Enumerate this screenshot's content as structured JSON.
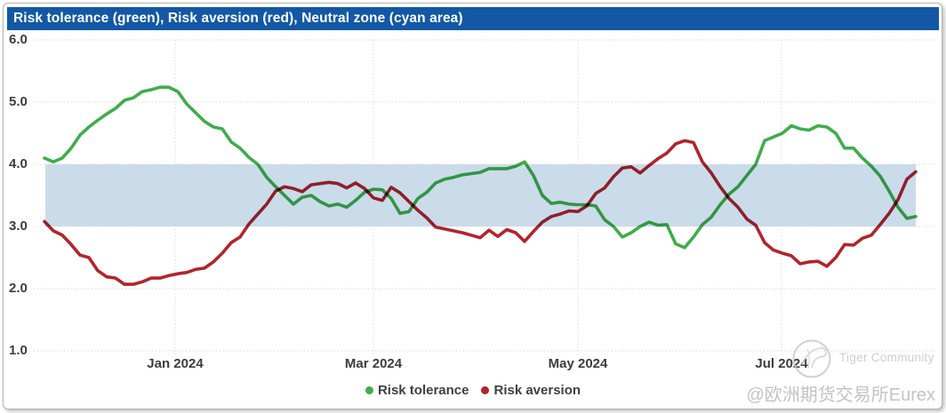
{
  "title_bar": {
    "text": "Risk tolerance (green), Risk aversion (red), Neutral zone (cyan area)"
  },
  "colors": {
    "title_bar_bg": "#1358A5",
    "title_text": "#FFFFFF",
    "risk_tolerance_green": "#3FAE49",
    "risk_aversion_red": "#B3242C",
    "neutral_band_cyan": "#CADBEA",
    "gridline": "#DCDCDC",
    "axis_label": "#3D3D3D",
    "watermark_gray": "#C8C8C8"
  },
  "chart_data": {
    "type": "line",
    "title": "Risk tolerance (green), Risk aversion (red), Neutral zone (cyan area)",
    "x_axis": {
      "tick_labels": [
        "Jan 2024",
        "Mar 2024",
        "May 2024",
        "Jul 2024"
      ]
    },
    "y_axis": {
      "min": 1.0,
      "max": 6.0,
      "tick_values": [
        6,
        5,
        4,
        3,
        2,
        1
      ],
      "tick_labels": [
        "6.0",
        "5.0",
        "4.0",
        "3.0",
        "2.0",
        "1.0"
      ]
    },
    "neutral_zone": {
      "label": "Neutral zone (cyan area)",
      "from": 3.0,
      "to": 4.0
    },
    "grid": true,
    "legend_position": "bottom-center",
    "series": [
      {
        "name": "Risk tolerance",
        "color": "#3FAE49",
        "values": [
          4.1,
          4.04,
          4.1,
          4.26,
          4.47,
          4.6,
          4.71,
          4.81,
          4.9,
          5.03,
          5.07,
          5.17,
          5.2,
          5.24,
          5.24,
          5.17,
          4.97,
          4.83,
          4.69,
          4.6,
          4.57,
          4.36,
          4.26,
          4.11,
          4.0,
          3.79,
          3.64,
          3.5,
          3.36,
          3.47,
          3.5,
          3.4,
          3.33,
          3.36,
          3.31,
          3.42,
          3.55,
          3.6,
          3.59,
          3.45,
          3.21,
          3.24,
          3.45,
          3.55,
          3.7,
          3.76,
          3.79,
          3.83,
          3.85,
          3.87,
          3.93,
          3.93,
          3.93,
          3.97,
          4.04,
          3.82,
          3.5,
          3.37,
          3.39,
          3.36,
          3.35,
          3.35,
          3.33,
          3.11,
          3.0,
          2.83,
          2.9,
          3.0,
          3.07,
          3.02,
          3.03,
          2.72,
          2.66,
          2.83,
          3.03,
          3.15,
          3.35,
          3.52,
          3.64,
          3.82,
          4.0,
          4.38,
          4.44,
          4.5,
          4.62,
          4.57,
          4.55,
          4.62,
          4.6,
          4.5,
          4.26,
          4.26,
          4.1,
          3.97,
          3.81,
          3.57,
          3.31,
          3.13,
          3.16
        ]
      },
      {
        "name": "Risk aversion",
        "color": "#B3242C",
        "values": [
          3.08,
          2.93,
          2.86,
          2.71,
          2.54,
          2.5,
          2.29,
          2.19,
          2.17,
          2.07,
          2.07,
          2.11,
          2.17,
          2.17,
          2.21,
          2.24,
          2.26,
          2.31,
          2.33,
          2.43,
          2.57,
          2.74,
          2.83,
          3.04,
          3.2,
          3.36,
          3.57,
          3.64,
          3.61,
          3.56,
          3.67,
          3.69,
          3.71,
          3.69,
          3.62,
          3.7,
          3.61,
          3.46,
          3.42,
          3.63,
          3.54,
          3.4,
          3.26,
          3.14,
          2.99,
          2.96,
          2.93,
          2.9,
          2.86,
          2.82,
          2.94,
          2.84,
          2.95,
          2.9,
          2.76,
          2.92,
          3.07,
          3.16,
          3.2,
          3.25,
          3.24,
          3.33,
          3.53,
          3.62,
          3.8,
          3.94,
          3.96,
          3.86,
          3.98,
          4.09,
          4.18,
          4.33,
          4.38,
          4.35,
          4.04,
          3.86,
          3.64,
          3.45,
          3.31,
          3.12,
          3.02,
          2.74,
          2.62,
          2.57,
          2.53,
          2.4,
          2.43,
          2.44,
          2.36,
          2.5,
          2.71,
          2.7,
          2.81,
          2.86,
          3.03,
          3.21,
          3.43,
          3.76,
          3.88
        ]
      }
    ]
  },
  "legend": {
    "items": [
      {
        "label": "Risk tolerance",
        "color": "#3FAE49"
      },
      {
        "label": "Risk aversion",
        "color": "#B3242C"
      }
    ]
  },
  "watermark": {
    "logo": "tiger-logo",
    "community": "Tiger Community",
    "handle": "@欧洲期货交易所Eurex"
  }
}
